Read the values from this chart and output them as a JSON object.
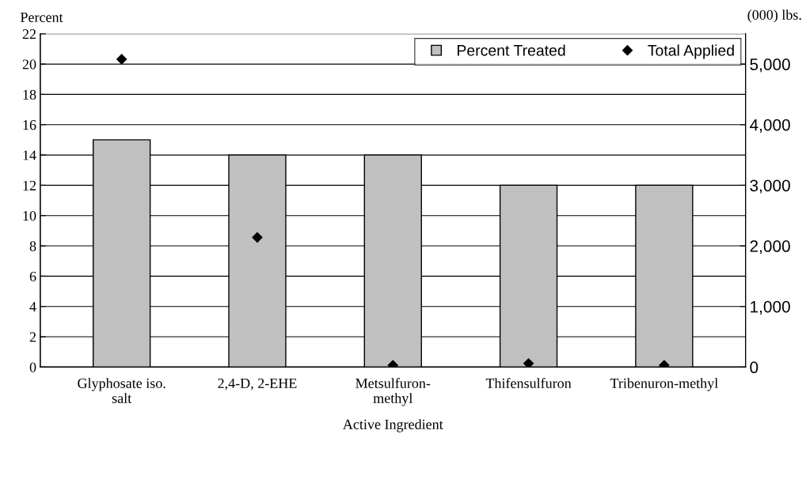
{
  "chart_data": {
    "type": "bar",
    "xlabel": "Active Ingredient",
    "ylabel": "Percent",
    "y2label": "(000) lbs.",
    "categories": [
      "Glyphosate iso.\nsalt",
      "2,4-D, 2-EHE",
      "Metsulfuron-\nmethyl",
      "Thifensulfuron",
      "Tribenuron-methyl"
    ],
    "series": [
      {
        "name": "Percent Treated",
        "color": "#c0c0c0",
        "values": [
          15,
          14,
          14,
          12,
          12
        ]
      },
      {
        "name": "Total Applied",
        "type": "scatter",
        "color": "#000000",
        "axis": "y2",
        "marker": "diamond",
        "values": [
          5080,
          2140,
          30,
          60,
          30
        ]
      }
    ],
    "ylim": [
      0,
      22
    ],
    "yticks": [
      0,
      2,
      4,
      6,
      8,
      10,
      12,
      14,
      16,
      18,
      20,
      22
    ],
    "y2lim": [
      0,
      5500
    ],
    "y2ticks": [
      {
        "value": 0,
        "label": "0"
      },
      {
        "value": 1000,
        "label": "1,000"
      },
      {
        "value": 2000,
        "label": "2,000"
      },
      {
        "value": 3000,
        "label": "3,000"
      },
      {
        "value": 4000,
        "label": "4,000"
      },
      {
        "value": 5000,
        "label": "5,000"
      }
    ],
    "grid": "y",
    "legend": "top right"
  }
}
